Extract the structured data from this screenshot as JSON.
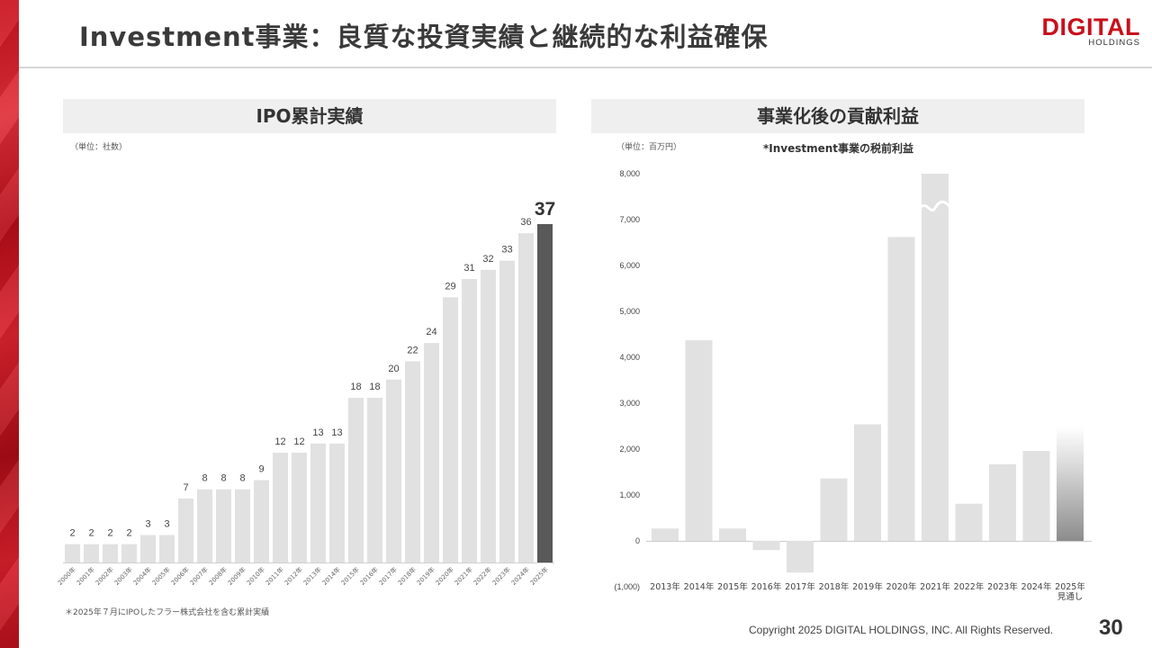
{
  "header": {
    "title": "Investment事業：良質な投資実績と継続的な利益確保",
    "logo_main": "DIGITAL",
    "logo_sub": "HOLDINGS"
  },
  "footer": {
    "copyright": "Copyright 2025 DIGITAL HOLDINGS, INC. All Rights Reserved.",
    "page_number": "30"
  },
  "colors": {
    "bar": "#e1e1e1",
    "highlight_bar": "#595959",
    "panel": "#efefef",
    "brand": "#c8101c"
  },
  "left_panel": {
    "title": "IPO累計実績",
    "unit": "（単位：社数）",
    "footnote": "＊2025年７月にIPOしたフラー株式会社を含む累計実績"
  },
  "right_panel": {
    "title": "事業化後の貢献利益",
    "unit": "（単位：百万円）",
    "subtitle": "*Investment事業の税前利益"
  },
  "chart_data": [
    {
      "type": "bar",
      "title": "IPO累計実績",
      "unit": "（単位：社数）",
      "categories": [
        "2000年",
        "2001年",
        "2002年",
        "2003年",
        "2004年",
        "2005年",
        "2006年",
        "2007年",
        "2008年",
        "2009年",
        "2010年",
        "2011年",
        "2012年",
        "2013年",
        "2014年",
        "2015年",
        "2016年",
        "2017年",
        "2018年",
        "2019年",
        "2020年",
        "2021年",
        "2022年",
        "2023年",
        "2024年",
        "2025年"
      ],
      "values": [
        2,
        2,
        2,
        2,
        3,
        3,
        7,
        8,
        8,
        8,
        9,
        12,
        12,
        13,
        13,
        18,
        18,
        20,
        22,
        24,
        29,
        31,
        32,
        33,
        36,
        37
      ],
      "data_labels": [
        "2",
        "2",
        "2",
        "2",
        "3",
        "3",
        "7",
        "8",
        "8",
        "8",
        "9",
        "12",
        "12",
        "13",
        "13",
        "18",
        "18",
        "20",
        "22",
        "24",
        "29",
        "31",
        "32",
        "33",
        "36",
        "37"
      ],
      "highlight_index": 25,
      "ylim": [
        0,
        37
      ],
      "grid": false,
      "legend": "none"
    },
    {
      "type": "bar",
      "title": "事業化後の貢献利益",
      "subtitle": "*Investment事業の税前利益",
      "unit": "（単位：百万円）",
      "categories": [
        "2013年",
        "2014年",
        "2015年",
        "2016年",
        "2017年",
        "2018年",
        "2019年",
        "2020年",
        "2021年",
        "2022年",
        "2023年",
        "2024年",
        "2025年見通し"
      ],
      "category_lines": [
        [
          "2013年"
        ],
        [
          "2014年"
        ],
        [
          "2015年"
        ],
        [
          "2016年"
        ],
        [
          "2017年"
        ],
        [
          "2018年"
        ],
        [
          "2019年"
        ],
        [
          "2020年"
        ],
        [
          "2021年"
        ],
        [
          "2022年"
        ],
        [
          "2023年"
        ],
        [
          "2024年"
        ],
        [
          "2025年",
          "見通し"
        ]
      ],
      "values": [
        270,
        4370,
        270,
        -200,
        -690,
        1360,
        2540,
        6620,
        8000,
        810,
        1670,
        1960,
        2500
      ],
      "truncated_index": 8,
      "forecast_index": 12,
      "y_ticks": [
        -1000,
        0,
        1000,
        2000,
        3000,
        4000,
        5000,
        6000,
        7000,
        8000
      ],
      "y_tick_labels": [
        "(1,000)",
        "0",
        "1,000",
        "2,000",
        "3,000",
        "4,000",
        "5,000",
        "6,000",
        "7,000",
        "8,000"
      ],
      "ylim": [
        -1000,
        8000
      ],
      "grid": false,
      "legend": "none"
    }
  ]
}
